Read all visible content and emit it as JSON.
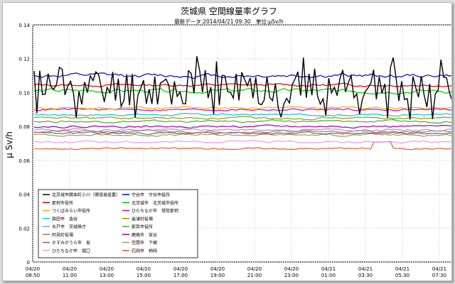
{
  "chart_data": {
    "type": "line",
    "title": "茨城県 空間線量率グラフ",
    "subtitle": "最新データ:2014/04/21 09:30　単位:μSv/h",
    "ylabel": "μ Sv/h",
    "xlabel": "",
    "ylim": [
      0,
      0.14
    ],
    "yticks": [
      "0",
      "0.02",
      "0.04",
      "0.06",
      "0.08",
      "0.10",
      "0.12",
      "0.14"
    ],
    "xlim": [
      "2014/04/20 08:00",
      "2014/04/21 09:30"
    ],
    "x_ticks": [
      {
        "date": "04/20",
        "time": "08:50"
      },
      {
        "date": "04/20",
        "time": "11:00"
      },
      {
        "date": "04/20",
        "time": "13:00"
      },
      {
        "date": "04/20",
        "time": "15:00"
      },
      {
        "date": "04/20",
        "time": "17:00"
      },
      {
        "date": "04/20",
        "time": "19:00"
      },
      {
        "date": "04/20",
        "time": "21:00"
      },
      {
        "date": "04/20",
        "time": "23:00"
      },
      {
        "date": "04/21",
        "time": "01:00"
      },
      {
        "date": "04/21",
        "time": "03:30"
      },
      {
        "date": "04/21",
        "time": "05:30"
      },
      {
        "date": "04/21",
        "time": "07:30"
      }
    ],
    "grid": true,
    "legend_position": "bottom-left",
    "series": [
      {
        "name": "北茨城市関本町小川（環境省設置）",
        "color": "#000000",
        "base": 0.103,
        "noise": 0.012,
        "width": 1.4,
        "seed": 11,
        "mode": "spiky"
      },
      {
        "name": "守谷市　守谷市役所",
        "color": "#0000cc",
        "base": 0.11,
        "noise": 0.003,
        "width": 1.2,
        "seed": 12
      },
      {
        "name": "那珂市役所",
        "color": "#dd0000",
        "base": 0.1045,
        "noise": 0.002,
        "width": 1.2,
        "seed": 13
      },
      {
        "name": "北茨城市　北茨城市役所",
        "color": "#00cc00",
        "base": 0.101,
        "noise": 0.003,
        "width": 1.2,
        "seed": 14
      },
      {
        "name": "つくばみらい市役所",
        "color": "#ffaa00",
        "base": 0.091,
        "noise": 0.0015,
        "width": 1.2,
        "seed": 15
      },
      {
        "name": "ひたちなか市　常陸那珂",
        "color": "#cc00cc",
        "base": 0.09,
        "noise": 0.0015,
        "width": 1.2,
        "seed": 16
      },
      {
        "name": "鉾田市　造谷",
        "color": "#00cccc",
        "base": 0.087,
        "noise": 0.0015,
        "width": 1.2,
        "seed": 17
      },
      {
        "name": "美浦村役場",
        "color": "#999900",
        "base": 0.085,
        "noise": 0.0015,
        "width": 1.2,
        "seed": 18
      },
      {
        "name": "水戸市　茨城県庁",
        "color": "#9999cc",
        "base": 0.078,
        "noise": 0.0015,
        "width": 1.2,
        "seed": 19
      },
      {
        "name": "那賀市役所",
        "color": "#44aa44",
        "base": 0.083,
        "noise": 0.0015,
        "width": 1.2,
        "seed": 20
      },
      {
        "name": "阿見町役場",
        "color": "#cc6666",
        "base": 0.077,
        "noise": 0.0015,
        "width": 1.2,
        "seed": 21
      },
      {
        "name": "鹿嶋市　宮谷",
        "color": "#aa00aa",
        "base": 0.08,
        "noise": 0.0015,
        "width": 1.2,
        "seed": 22
      },
      {
        "name": "かすみがうら市　坂",
        "color": "#666666",
        "base": 0.076,
        "noise": 0.0015,
        "width": 1.2,
        "seed": 23
      },
      {
        "name": "笠間市　下郷",
        "color": "#999966",
        "base": 0.075,
        "noise": 0.0015,
        "width": 1.2,
        "seed": 24
      },
      {
        "name": "ひたちなか市　堀口",
        "color": "#ee99ee",
        "base": 0.071,
        "noise": 0.0015,
        "width": 1.2,
        "seed": 25
      },
      {
        "name": "石岡市　柿岡",
        "color": "#ee5533",
        "base": 0.067,
        "noise": 0.0012,
        "width": 1.2,
        "seed": 26,
        "mode": "step"
      }
    ]
  }
}
